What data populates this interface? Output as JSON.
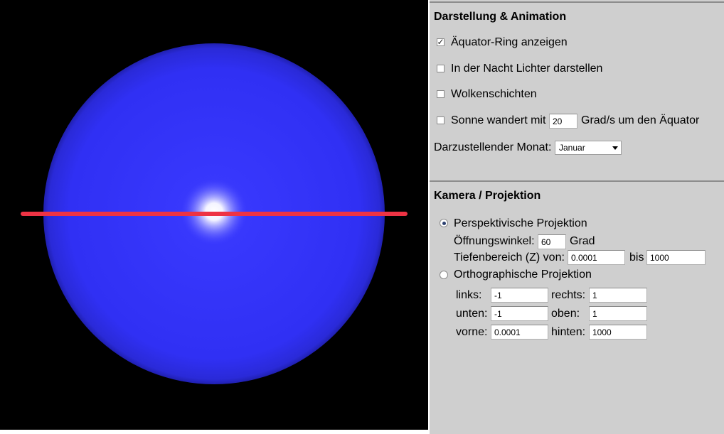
{
  "display": {
    "title": "Darstellung & Animation",
    "equator_ring": {
      "label": "Äquator-Ring anzeigen",
      "checked": true
    },
    "night_lights": {
      "label": "In der Nacht Lichter darstellen",
      "checked": false
    },
    "clouds": {
      "label": "Wolkenschichten",
      "checked": false
    },
    "sun": {
      "label_before": "Sonne wandert mit",
      "speed": "20",
      "label_after": "Grad/s um den Äquator",
      "checked": false
    },
    "month": {
      "label": "Darzustellender Monat:",
      "selected": "Januar"
    }
  },
  "camera": {
    "title": "Kamera / Projektion",
    "perspective": {
      "label": "Perspektivische Projektion",
      "selected": true,
      "fov_label": "Öffnungswinkel:",
      "fov_value": "60",
      "fov_unit": "Grad",
      "depth_label": "Tiefenbereich (Z) von:",
      "depth_near": "0.0001",
      "depth_between": "bis",
      "depth_far": "1000"
    },
    "orthographic": {
      "label": "Orthographische Projektion",
      "selected": false,
      "left_label": "links:",
      "left_value": "-1",
      "right_label": "rechts:",
      "right_value": "1",
      "bottom_label": "unten:",
      "bottom_value": "-1",
      "top_label": "oben:",
      "top_value": "1",
      "front_label": "vorne:",
      "front_value": "0.0001",
      "back_label": "hinten:",
      "back_value": "1000"
    }
  },
  "colors": {
    "sphere": "#3333ff",
    "ring": "#ee3344",
    "background": "#000000",
    "panel": "#cfcfcf"
  }
}
